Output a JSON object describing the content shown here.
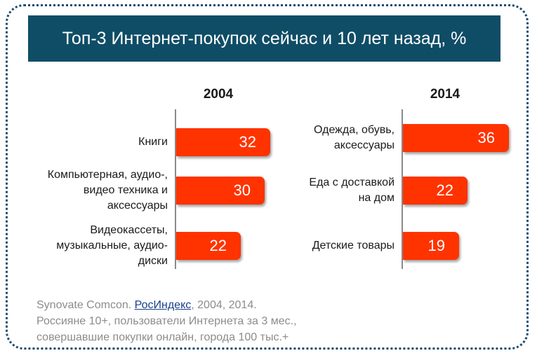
{
  "title": "Топ-3 Интернет-покупок сейчас и 10 лет назад, %",
  "chart_data": [
    {
      "type": "bar",
      "title": "2004",
      "categories": [
        "Книги",
        "Компьютерная, аудио-,\nвидео техника и\nаксессуары",
        "Видеокассеты,\nмузыкальные, аудио-\nдиски"
      ],
      "values": [
        32,
        30,
        22
      ],
      "color": "#ff3300"
    },
    {
      "type": "bar",
      "title": "2014",
      "categories": [
        "Одежда, обувь,\nаксессуары",
        "Еда с доставкой\nна дом",
        "Детские товары"
      ],
      "values": [
        36,
        22,
        19
      ],
      "color": "#ff3300"
    }
  ],
  "source": {
    "line1_prefix": "Synovate Comcon. ",
    "line1_link": "РосИндекс",
    "line1_suffix": ", 2004, 2014.",
    "line2": "Россияне 10+, пользователи Интернета за 3 мес.,",
    "line3": "совершавшие покупки онлайн, города 100 тыс.+"
  }
}
